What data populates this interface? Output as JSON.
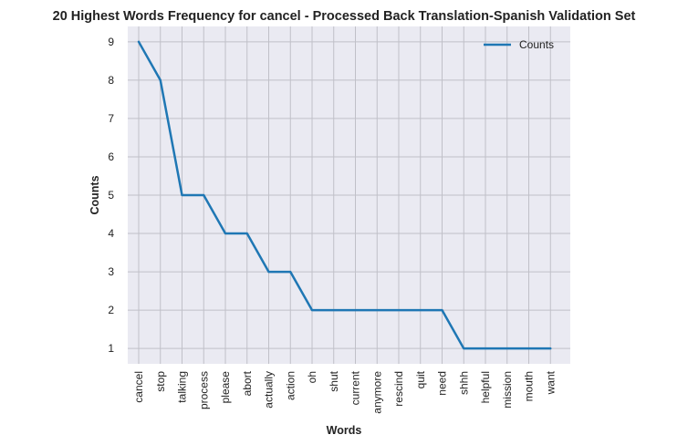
{
  "chart_data": {
    "type": "line",
    "title": "20 Highest Words Frequency for cancel - Processed Back Translation-Spanish Validation Set",
    "xlabel": "Words",
    "ylabel": "Counts",
    "categories": [
      "cancel",
      "stop",
      "talking",
      "process",
      "please",
      "abort",
      "actually",
      "action",
      "oh",
      "shut",
      "current",
      "anymore",
      "rescind",
      "quit",
      "need",
      "shhh",
      "helpful",
      "mission",
      "mouth",
      "want"
    ],
    "series": [
      {
        "name": "Counts",
        "values": [
          9,
          8,
          5,
          5,
          4,
          4,
          3,
          3,
          2,
          2,
          2,
          2,
          2,
          2,
          2,
          1,
          1,
          1,
          1,
          1
        ]
      }
    ],
    "yticks": [
      1,
      2,
      3,
      4,
      5,
      6,
      7,
      8,
      9
    ],
    "ylim": [
      0.6,
      9.4
    ],
    "grid": true,
    "legend_position": "top-right",
    "colors": {
      "line": "#1f77b4",
      "plot_background": "#eaeaf2",
      "grid": "#c0c0c8"
    }
  }
}
